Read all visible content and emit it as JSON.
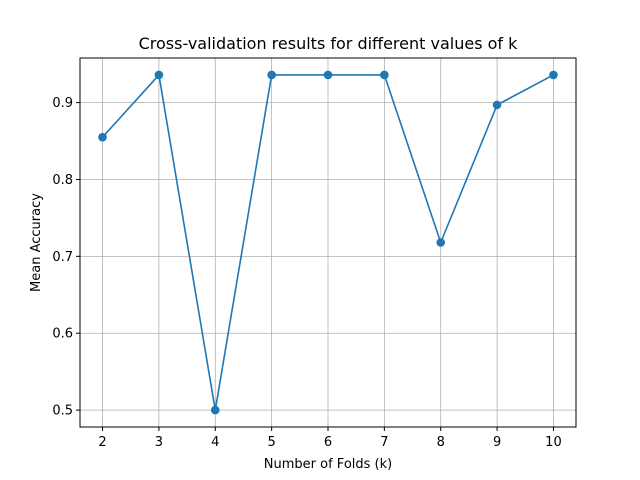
{
  "chart_data": {
    "type": "line",
    "title": "Cross-validation results for different values of k",
    "xlabel": "Number of Folds (k)",
    "ylabel": "Mean Accuracy",
    "x": [
      2,
      3,
      4,
      5,
      6,
      7,
      8,
      9,
      10
    ],
    "series": [
      {
        "values": [
          0.855,
          0.936,
          0.5,
          0.936,
          0.936,
          0.936,
          0.718,
          0.897,
          0.936
        ],
        "color": "#1f77b4",
        "marker": "circle"
      }
    ],
    "xlim": [
      1.6,
      10.4
    ],
    "ylim": [
      0.478,
      0.958
    ],
    "xticks": [
      2,
      3,
      4,
      5,
      6,
      7,
      8,
      9,
      10
    ],
    "yticks": [
      0.5,
      0.6,
      0.7,
      0.8,
      0.9
    ],
    "ytick_labels": [
      "0.5",
      "0.6",
      "0.7",
      "0.8",
      "0.9"
    ],
    "grid": true
  }
}
